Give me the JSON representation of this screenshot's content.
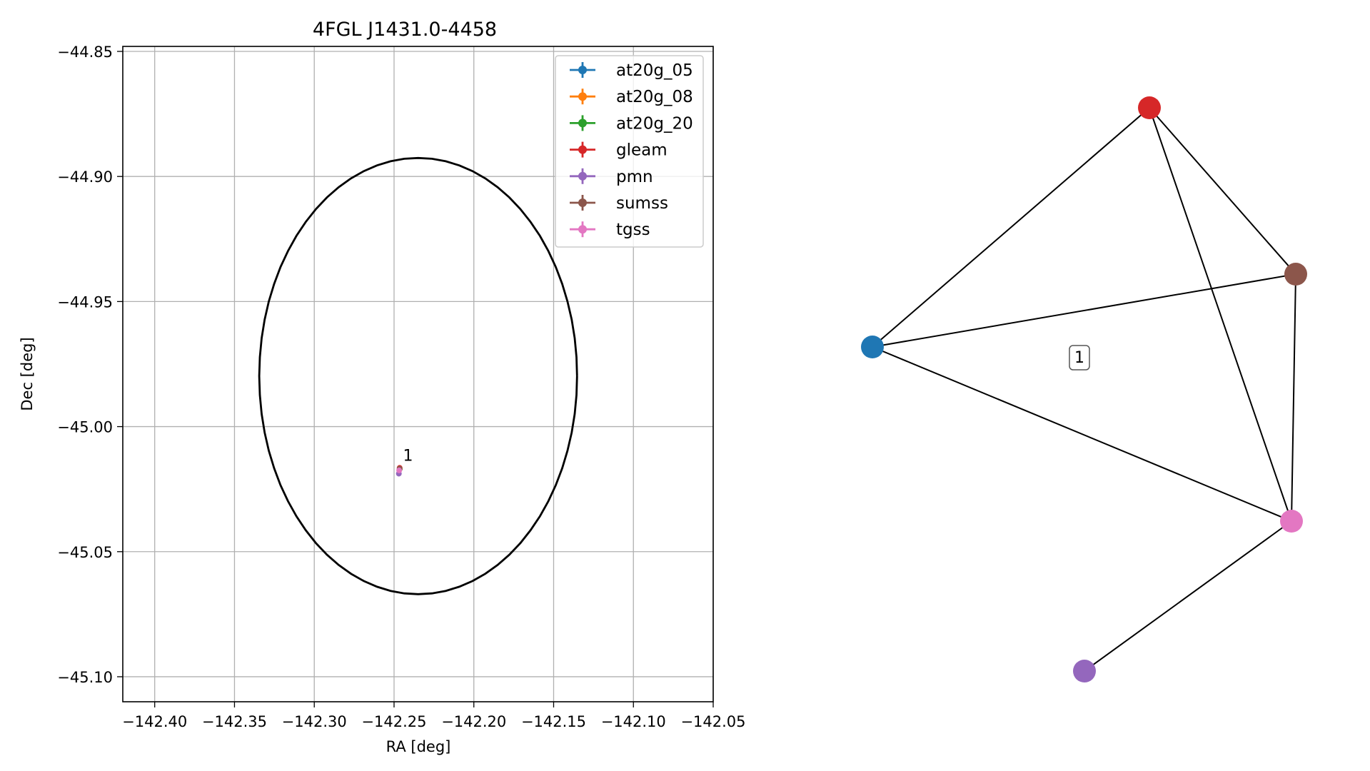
{
  "chart_data": [
    {
      "type": "scatter",
      "title": "4FGL J1431.0-4458",
      "xlabel": "RA [deg]",
      "ylabel": "Dec [deg]",
      "xlim": [
        -142.42,
        -142.05
      ],
      "ylim": [
        -45.11,
        -44.848
      ],
      "xticks": [
        -142.4,
        -142.35,
        -142.3,
        -142.25,
        -142.2,
        -142.15,
        -142.1,
        -142.05
      ],
      "xtick_labels": [
        "−142.40",
        "−142.35",
        "−142.30",
        "−142.25",
        "−142.20",
        "−142.15",
        "−142.10",
        "−142.05"
      ],
      "yticks": [
        -44.85,
        -44.9,
        -44.95,
        -45.0,
        -45.05,
        -45.1
      ],
      "ytick_labels": [
        "−44.85",
        "−44.90",
        "−44.95",
        "−45.00",
        "−45.05",
        "−45.10"
      ],
      "grid": true,
      "legend_position": "top-right",
      "series": [
        {
          "name": "at20g_05",
          "color": "#1f77b4",
          "x": -142.2465,
          "y": -45.017
        },
        {
          "name": "at20g_08",
          "color": "#ff7f0e",
          "x": -142.2465,
          "y": -45.017
        },
        {
          "name": "at20g_20",
          "color": "#2ca02c",
          "x": -142.2465,
          "y": -45.017
        },
        {
          "name": "gleam",
          "color": "#d62728",
          "x": -142.2465,
          "y": -45.0165
        },
        {
          "name": "pmn",
          "color": "#9467bd",
          "x": -142.247,
          "y": -45.0188
        },
        {
          "name": "sumss",
          "color": "#8c564b",
          "x": -142.2465,
          "y": -45.0168
        },
        {
          "name": "tgss",
          "color": "#e377c2",
          "x": -142.2468,
          "y": -45.0175
        }
      ],
      "ellipse": {
        "center": [
          -142.2349,
          -44.9798
        ],
        "rx": 0.0996,
        "ry": 0.0872,
        "color": "#000000"
      },
      "annotations": [
        {
          "text": "1",
          "x": -142.2444,
          "y": -45.0137
        }
      ]
    },
    {
      "type": "network",
      "nodes": [
        {
          "id": "at20g",
          "color": "#1f77b4"
        },
        {
          "id": "gleam",
          "color": "#d62728"
        },
        {
          "id": "sumss",
          "color": "#8c564b"
        },
        {
          "id": "tgss",
          "color": "#e377c2"
        },
        {
          "id": "pmn",
          "color": "#9467bd"
        }
      ],
      "edges": [
        [
          "at20g",
          "gleam"
        ],
        [
          "at20g",
          "sumss"
        ],
        [
          "at20g",
          "tgss"
        ],
        [
          "gleam",
          "sumss"
        ],
        [
          "gleam",
          "tgss"
        ],
        [
          "sumss",
          "tgss"
        ],
        [
          "tgss",
          "pmn"
        ]
      ],
      "group_label": "1"
    }
  ]
}
